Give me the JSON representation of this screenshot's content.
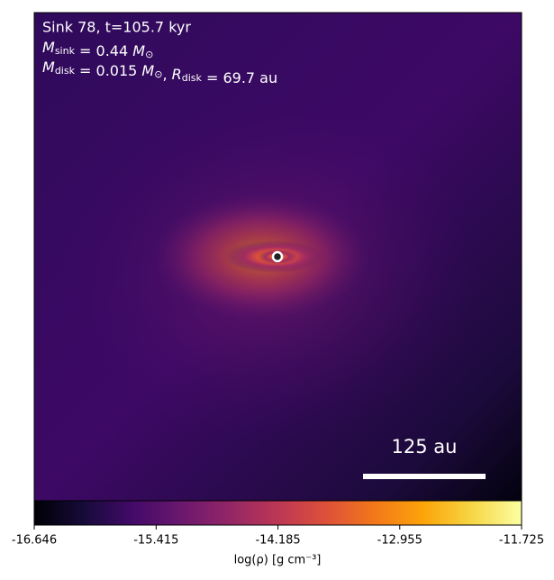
{
  "chart_data": {
    "type": "image",
    "annotations": [
      {
        "text": "Sink 78, t=105.7 kyr"
      },
      {
        "parts": [
          {
            "text": "M"
          },
          {
            "sub": "sink"
          },
          {
            "text": " = 0.44 "
          },
          {
            "text": "M"
          },
          {
            "sub": "⊙"
          }
        ]
      },
      {
        "parts": [
          {
            "text": "M"
          },
          {
            "sub": "disk"
          },
          {
            "text": " = 0.015 "
          },
          {
            "text": "M"
          },
          {
            "sub": "⊙"
          },
          {
            "text": ", "
          },
          {
            "text": "R"
          },
          {
            "sub": "disk"
          },
          {
            "text": " = 69.7 au"
          }
        ]
      }
    ],
    "scale_bar_label": "125 au",
    "colorbar": {
      "cmap": "inferno",
      "clim": [
        -16.646,
        -11.725
      ],
      "ticks": [
        -16.646,
        -15.415,
        -14.185,
        -12.955,
        -11.725
      ],
      "label": "log(ρ) [g cm⁻³]"
    }
  }
}
